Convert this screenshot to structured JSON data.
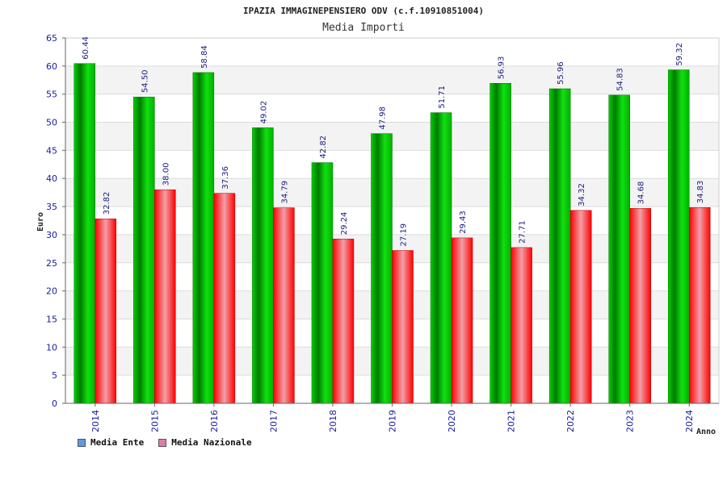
{
  "chart_data": {
    "type": "bar",
    "title": "IPAZIA IMMAGINEPENSIERO ODV (c.f.10910851004)",
    "subtitle": "Media Importi",
    "xlabel": "Anno",
    "ylabel": "Euro",
    "ylim": [
      0,
      65
    ],
    "yticks": [
      0,
      5,
      10,
      15,
      20,
      25,
      30,
      35,
      40,
      45,
      50,
      55,
      60,
      65
    ],
    "categories": [
      "2014",
      "2015",
      "2016",
      "2017",
      "2018",
      "2019",
      "2020",
      "2021",
      "2022",
      "2023",
      "2024"
    ],
    "series": [
      {
        "name": "Media Ente",
        "values": [
          60.44,
          54.5,
          58.84,
          49.02,
          42.82,
          47.98,
          51.71,
          56.93,
          55.96,
          54.83,
          59.32
        ],
        "labels": [
          "60.44",
          "54.50",
          "58.84",
          "49.02",
          "42.82",
          "47.98",
          "51.71",
          "56.93",
          "55.96",
          "54.83",
          "59.32"
        ],
        "color": "#00b400",
        "legend_color": "#5b9be6"
      },
      {
        "name": "Media Nazionale",
        "values": [
          32.82,
          38.0,
          37.36,
          34.79,
          29.24,
          27.19,
          29.43,
          27.71,
          34.32,
          34.68,
          34.83
        ],
        "labels": [
          "32.82",
          "38.00",
          "37.36",
          "34.79",
          "29.24",
          "27.19",
          "29.43",
          "27.71",
          "34.32",
          "34.68",
          "34.83"
        ],
        "color": "#e60000",
        "legend_color": "#e07ab0"
      }
    ],
    "grid": true,
    "legend": "bottom-left"
  }
}
